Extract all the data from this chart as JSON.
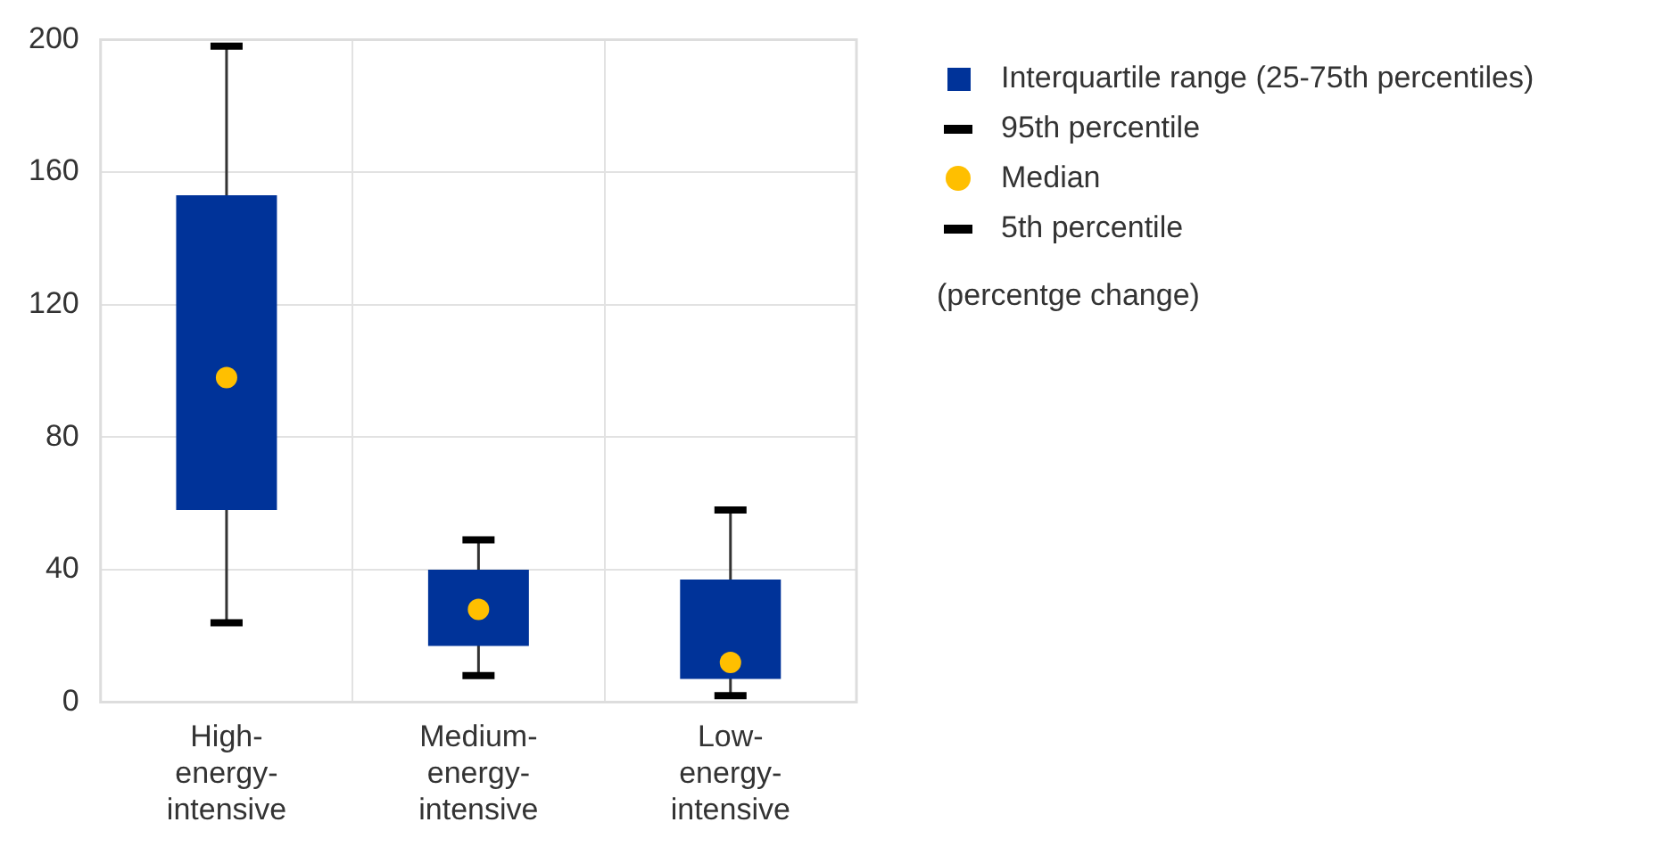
{
  "chart_data": {
    "type": "box",
    "categories": [
      "High-energy-intensive",
      "Medium-energy-intensive",
      "Low-energy-intensive"
    ],
    "series": [
      {
        "name": "Interquartile range (25-75th percentiles)",
        "color": "#003399",
        "boxes": [
          {
            "low": 24,
            "q1": 58,
            "median": 98,
            "q3": 153,
            "high": 198
          },
          {
            "low": 8,
            "q1": 17,
            "median": 28,
            "q3": 40,
            "high": 49
          },
          {
            "low": 2,
            "q1": 7,
            "median": 12,
            "q3": 37,
            "high": 58
          }
        ]
      }
    ],
    "ylim": [
      0,
      200
    ],
    "yticks": [
      0,
      40,
      80,
      120,
      160,
      200
    ],
    "grid": true,
    "legend": "right",
    "annotations": [
      "95th percentile",
      "Median",
      "5th percentile",
      "(percentge change)"
    ]
  }
}
